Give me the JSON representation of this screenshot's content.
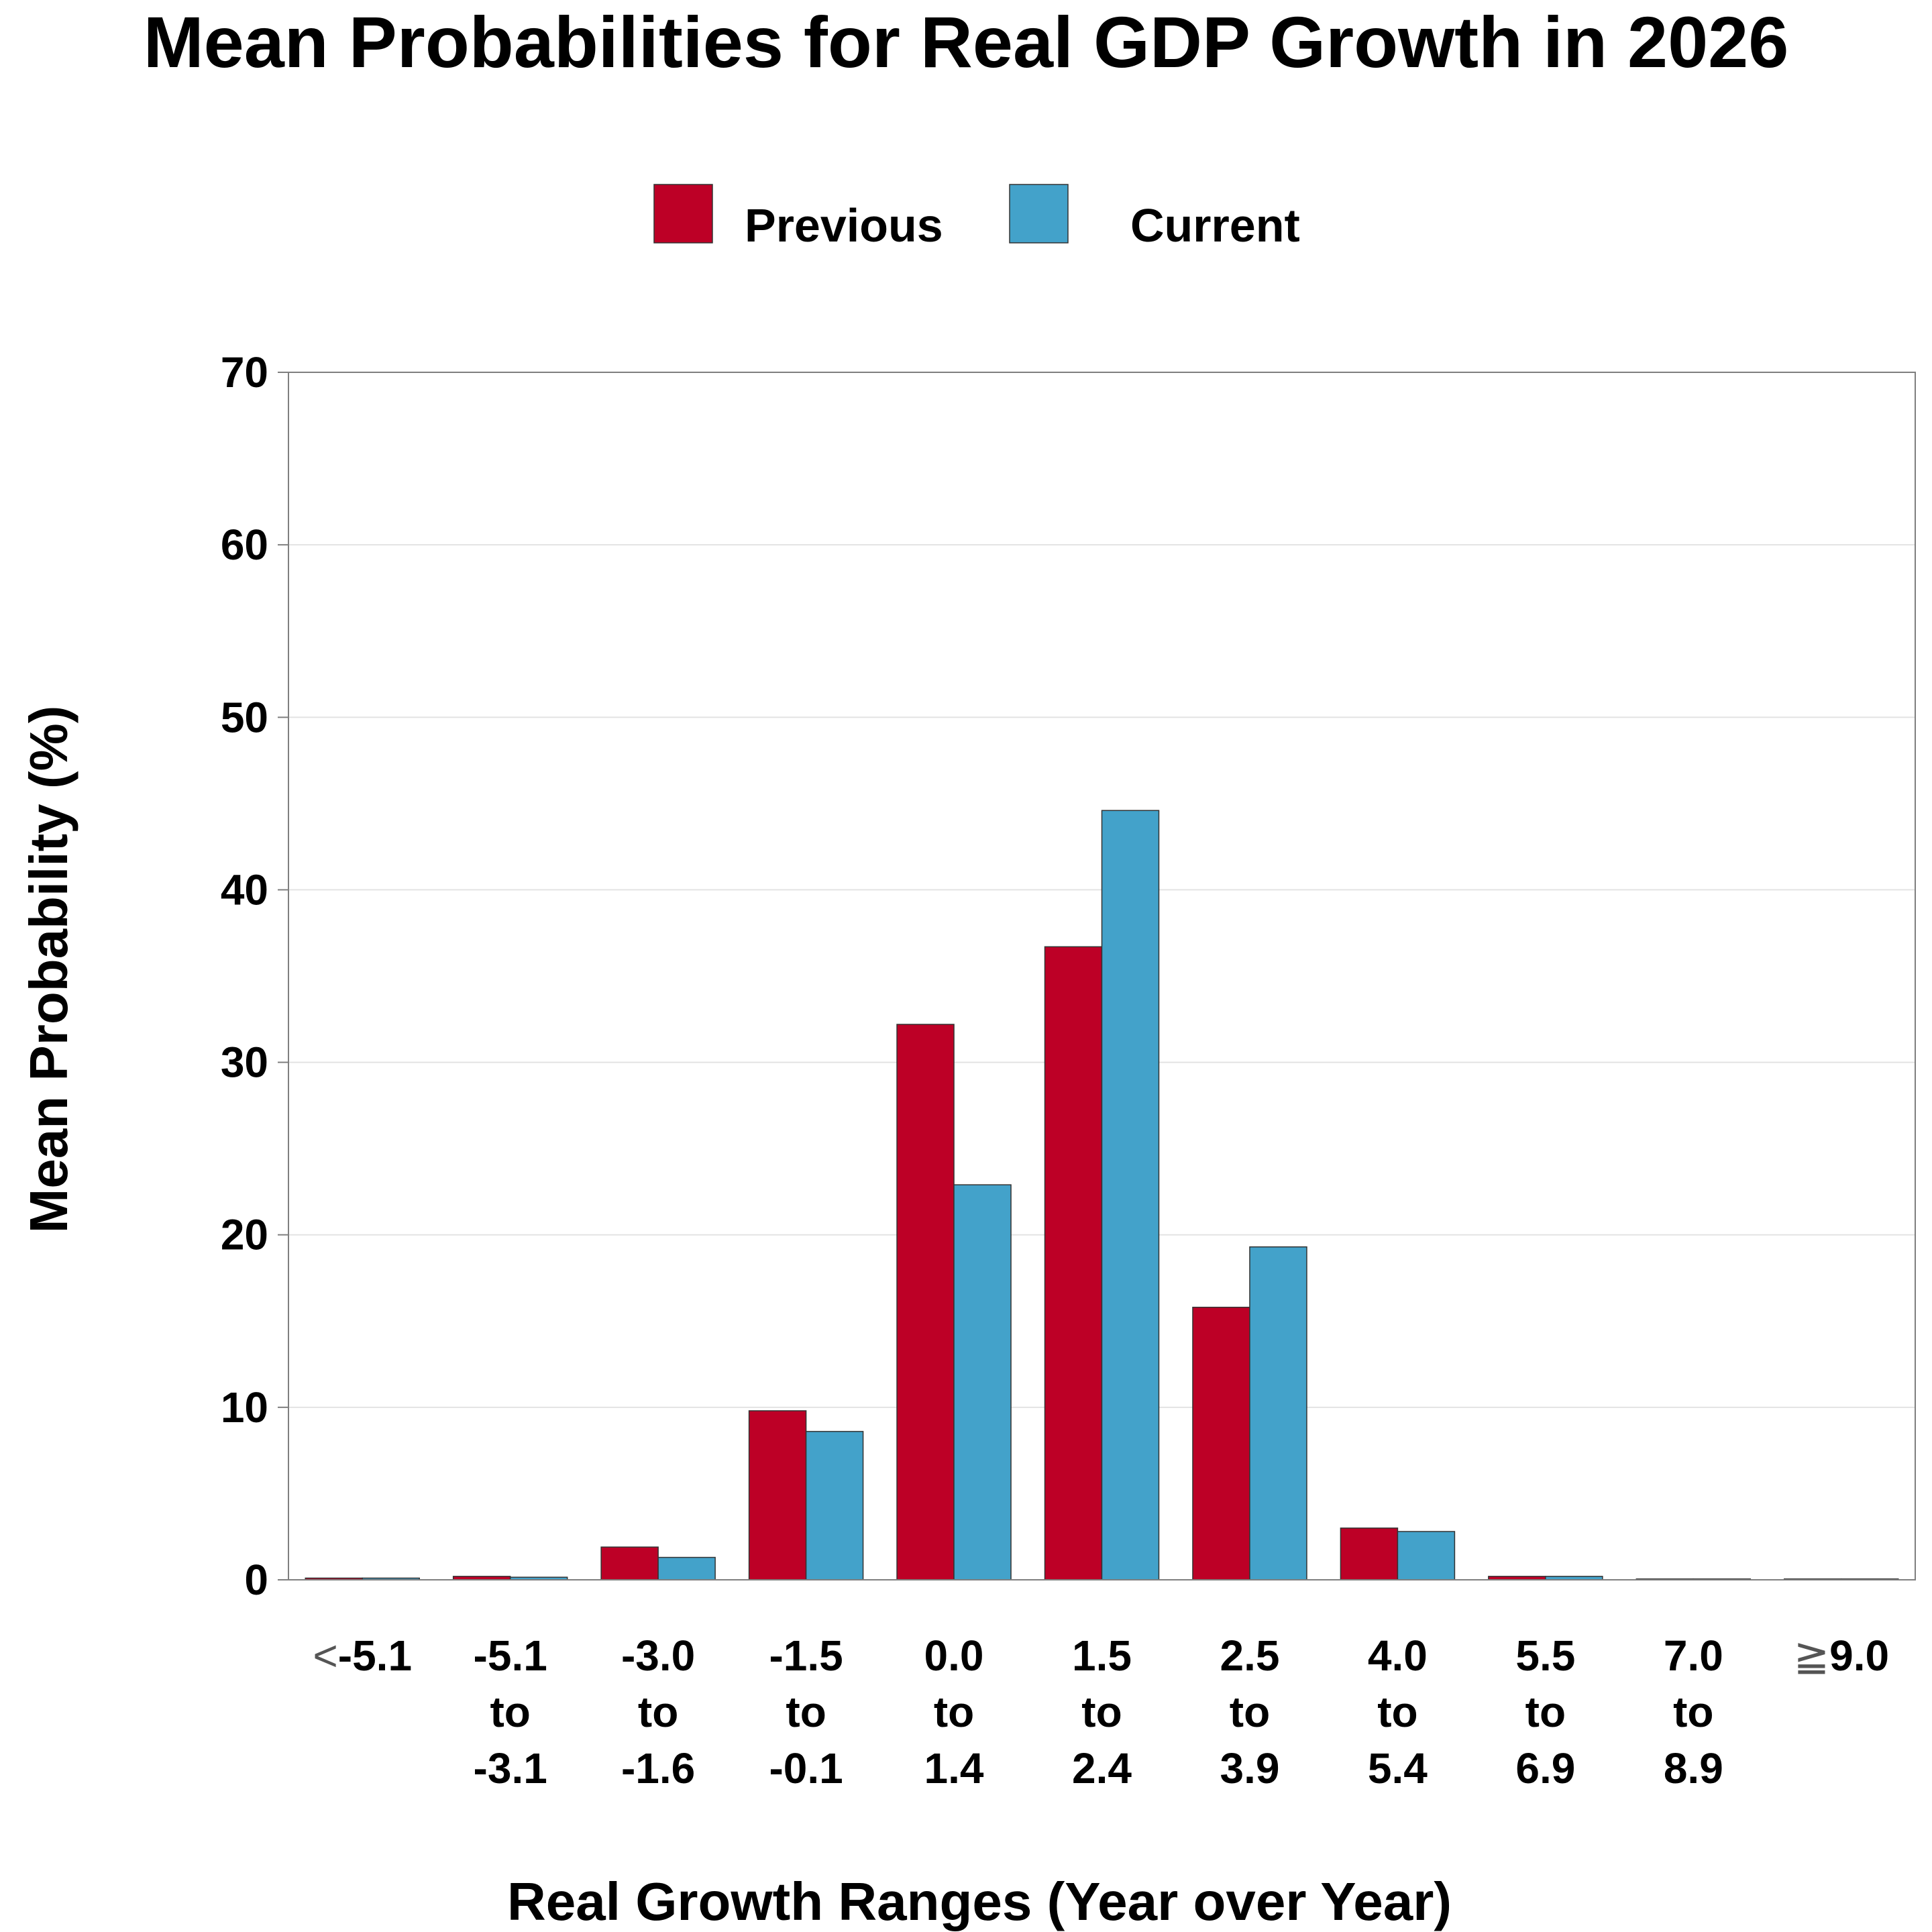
{
  "chart_data": {
    "type": "bar",
    "title": "Mean Probabilities for Real GDP Growth in 2026",
    "xlabel": "Real Growth Ranges (Year over Year)",
    "ylabel": "Mean Probability (%)",
    "ylim": [
      0,
      70
    ],
    "yticks": [
      "0",
      "10",
      "20",
      "30",
      "40",
      "50",
      "60",
      "70"
    ],
    "grid": "horizontal",
    "legend_position": "top-center",
    "categories": [
      [
        "<",
        "-5.1"
      ],
      [
        "-5.1",
        "to",
        "-3.1"
      ],
      [
        "-3.0",
        "to",
        "-1.6"
      ],
      [
        "-1.5",
        "to",
        "-0.1"
      ],
      [
        "0.0",
        "to",
        "1.4"
      ],
      [
        "1.5",
        "to",
        "2.4"
      ],
      [
        "2.5",
        "to",
        "3.9"
      ],
      [
        "4.0",
        "to",
        "5.4"
      ],
      [
        "5.5",
        "to",
        "6.9"
      ],
      [
        "7.0",
        "to",
        "8.9"
      ],
      [
        "≧",
        "9.0"
      ]
    ],
    "series": [
      {
        "name": "Previous",
        "color": "#BD0026",
        "values": [
          0.1,
          0.2,
          1.9,
          9.8,
          32.2,
          36.7,
          15.8,
          3.0,
          0.2,
          0.05,
          0.05
        ]
      },
      {
        "name": "Current",
        "color": "#43A2CA",
        "values": [
          0.1,
          0.15,
          1.3,
          8.6,
          22.9,
          44.6,
          19.3,
          2.8,
          0.2,
          0.05,
          0.05
        ]
      }
    ]
  }
}
